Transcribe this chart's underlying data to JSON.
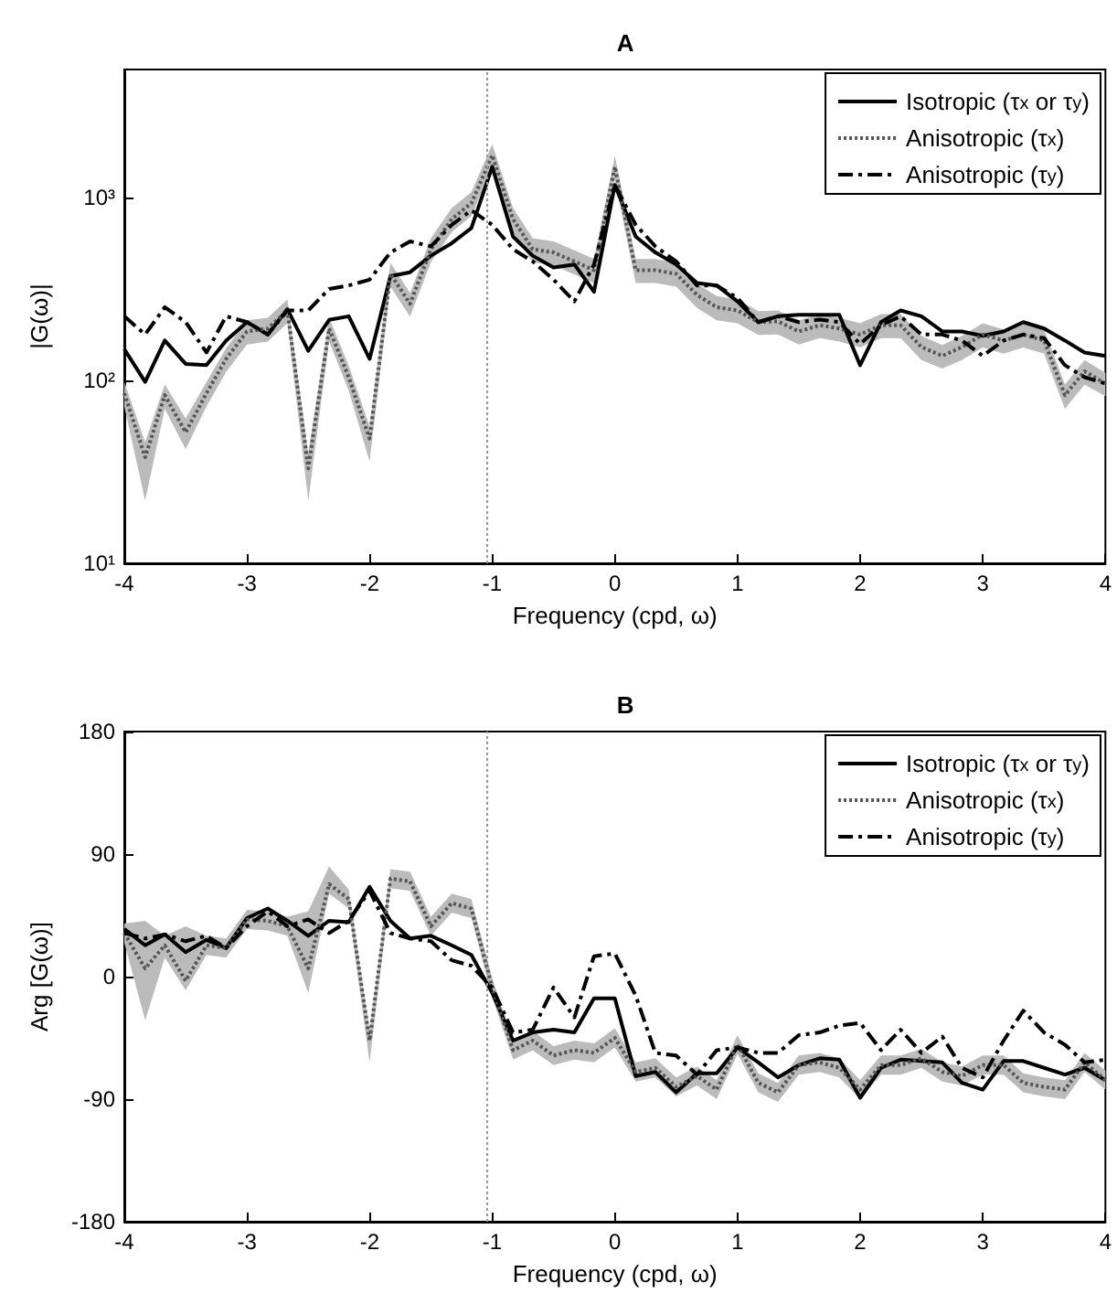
{
  "chart_data": [
    {
      "type": "line",
      "title": "A",
      "xlabel": "Frequency (cpd, ω)",
      "ylabel": "|G(ω)|",
      "log": "y",
      "legend": "top right",
      "marker": "none",
      "x": [
        -4,
        -3.83,
        -3.67,
        -3.5,
        -3.33,
        -3.17,
        -3,
        -2.83,
        -2.67,
        -2.5,
        -2.33,
        -2.17,
        -2,
        -1.83,
        -1.67,
        -1.5,
        -1.33,
        -1.17,
        -1,
        -0.83,
        -0.67,
        -0.5,
        -0.33,
        -0.17,
        0,
        0.17,
        0.33,
        0.5,
        0.67,
        0.83,
        1,
        1.17,
        1.33,
        1.5,
        1.67,
        1.83,
        2,
        2.17,
        2.33,
        2.5,
        2.67,
        2.83,
        3,
        3.17,
        3.33,
        3.5,
        3.67,
        3.83,
        4
      ],
      "xlim": [
        -4,
        4
      ],
      "xticks": [
        -4,
        -3,
        -2,
        -1,
        0,
        1,
        2,
        3,
        4
      ],
      "ylim": [
        10,
        5000
      ],
      "yticks": [
        {
          "value": 10,
          "label": "10¹"
        },
        {
          "value": 100,
          "label": "10²"
        },
        {
          "value": 1000,
          "label": "10³"
        }
      ],
      "ref_lines": [
        {
          "axis": "x",
          "value": -1.05,
          "color": "#999999",
          "line_style": "dotted"
        }
      ],
      "series": [
        {
          "name": "Isotropic (τ$_{x}$ or τ$_{y}$)",
          "color": "#000000",
          "line_style": "solid",
          "values": [
            148,
            98,
            165,
            123,
            121,
            165,
            208,
            178,
            245,
            145,
            214,
            224,
            131,
            371,
            390,
            480,
            562,
            680,
            1470,
            610,
            480,
            414,
            430,
            305,
            1170,
            610,
            500,
            430,
            340,
            330,
            270,
            208,
            224,
            228,
            228,
            228,
            121,
            208,
            241,
            224,
            185,
            185,
            175,
            185,
            208,
            192,
            165,
            142,
            136
          ]
        },
        {
          "name": "Anisotropic (τ$_{x}$)",
          "color": "#555555",
          "line_style": "dotted",
          "values": [
            85,
            38,
            83,
            52,
            85,
            131,
            185,
            192,
            241,
            33,
            192,
            104,
            48,
            382,
            262,
            520,
            760,
            930,
            1700,
            760,
            520,
            500,
            447,
            400,
            1470,
            400,
            400,
            382,
            293,
            251,
            241,
            208,
            210,
            185,
            200,
            192,
            178,
            200,
            200,
            152,
            136,
            152,
            178,
            165,
            178,
            165,
            83,
            112,
            96
          ],
          "lower": [
            72,
            22,
            70,
            42,
            72,
            111,
            157,
            163,
            205,
            22,
            163,
            88,
            36,
            325,
            223,
            442,
            646,
            790,
            1450,
            646,
            442,
            425,
            380,
            340,
            1250,
            340,
            340,
            325,
            249,
            213,
            205,
            177,
            178,
            157,
            170,
            163,
            151,
            170,
            170,
            129,
            116,
            129,
            151,
            140,
            151,
            140,
            70,
            95,
            82
          ],
          "upper": [
            98,
            46,
            95,
            62,
            98,
            150,
            213,
            220,
            277,
            40,
            220,
            120,
            56,
            440,
            300,
            598,
            874,
            1070,
            1950,
            874,
            598,
            575,
            514,
            460,
            1690,
            460,
            460,
            440,
            337,
            289,
            277,
            239,
            241,
            213,
            230,
            220,
            205,
            230,
            230,
            175,
            156,
            175,
            205,
            190,
            205,
            190,
            95,
            129,
            110
          ]
        },
        {
          "name": "Anisotropic (τ$_{y}$)",
          "color": "#000000",
          "line_style": "dashed",
          "values": [
            224,
            178,
            251,
            208,
            142,
            224,
            208,
            178,
            241,
            241,
            316,
            330,
            355,
            500,
            575,
            540,
            708,
            850,
            708,
            520,
            447,
            355,
            270,
            430,
            1170,
            708,
            540,
            447,
            330,
            330,
            282,
            208,
            224,
            208,
            215,
            208,
            158,
            200,
            224,
            178,
            178,
            165,
            136,
            165,
            178,
            170,
            121,
            104,
            96
          ]
        }
      ]
    },
    {
      "type": "line",
      "title": "B",
      "xlabel": "Frequency (cpd, ω)",
      "ylabel": "Arg [G(ω)]",
      "legend": "top right",
      "marker": "none",
      "x": [
        -4,
        -3.83,
        -3.67,
        -3.5,
        -3.33,
        -3.17,
        -3,
        -2.83,
        -2.67,
        -2.5,
        -2.33,
        -2.17,
        -2,
        -1.83,
        -1.67,
        -1.5,
        -1.33,
        -1.17,
        -1,
        -0.83,
        -0.67,
        -0.5,
        -0.33,
        -0.17,
        0,
        0.17,
        0.33,
        0.5,
        0.67,
        0.83,
        1,
        1.17,
        1.33,
        1.5,
        1.67,
        1.83,
        2,
        2.17,
        2.33,
        2.5,
        2.67,
        2.83,
        3,
        3.17,
        3.33,
        3.5,
        3.67,
        3.83,
        4
      ],
      "xlim": [
        -4,
        4
      ],
      "xticks": [
        -4,
        -3,
        -2,
        -1,
        0,
        1,
        2,
        3,
        4
      ],
      "ylim": [
        -180,
        180
      ],
      "yticks": [
        -180,
        -90,
        0,
        90,
        180
      ],
      "ref_lines": [
        {
          "axis": "x",
          "value": -1.05,
          "color": "#999999",
          "line_style": "dotted"
        }
      ],
      "series": [
        {
          "name": "Isotropic (τ$_{x}$ or τ$_{y}$)",
          "color": "#000000",
          "line_style": "solid",
          "values": [
            35,
            23,
            31,
            18,
            27,
            21,
            43,
            50,
            41,
            30,
            41,
            40,
            66,
            41,
            28,
            30,
            23,
            16,
            -12,
            -47,
            -41,
            -39,
            -41,
            -16,
            -16,
            -73,
            -70,
            -85,
            -71,
            -71,
            -52,
            -63,
            -74,
            -65,
            -60,
            -61,
            -89,
            -67,
            -61,
            -62,
            -63,
            -78,
            -83,
            -62,
            -62,
            -67,
            -72,
            -67,
            -76
          ]
        },
        {
          "name": "Anisotropic (τ$_{x}$)",
          "color": "#555555",
          "line_style": "dotted",
          "values": [
            32,
            6,
            23,
            -3,
            23,
            21,
            42,
            41,
            37,
            6,
            68,
            57,
            -47,
            72,
            70,
            37,
            54,
            50,
            -8,
            -54,
            -47,
            -58,
            -54,
            -56,
            -45,
            -70,
            -67,
            -81,
            -73,
            -83,
            -50,
            -78,
            -85,
            -65,
            -63,
            -67,
            -83,
            -65,
            -65,
            -60,
            -70,
            -73,
            -65,
            -65,
            -78,
            -81,
            -83,
            -63,
            -76
          ],
          "lower": [
            25,
            -32,
            14,
            -10,
            16,
            14,
            35,
            34,
            30,
            -12,
            61,
            50,
            -63,
            65,
            63,
            30,
            47,
            43,
            -15,
            -61,
            -54,
            -65,
            -61,
            -63,
            -52,
            -77,
            -74,
            -88,
            -80,
            -90,
            -57,
            -85,
            -92,
            -72,
            -70,
            -74,
            -90,
            -72,
            -72,
            -67,
            -77,
            -80,
            -72,
            -72,
            -85,
            -88,
            -90,
            -70,
            -83
          ],
          "upper": [
            39,
            41,
            30,
            37,
            30,
            28,
            49,
            48,
            44,
            48,
            81,
            64,
            -40,
            79,
            77,
            44,
            61,
            57,
            -1,
            -47,
            -40,
            -51,
            -47,
            -49,
            -38,
            -63,
            -60,
            -74,
            -66,
            -76,
            -43,
            -71,
            -78,
            -58,
            -56,
            -60,
            -76,
            -58,
            -58,
            -53,
            -63,
            -66,
            -58,
            -58,
            -71,
            -74,
            -76,
            -56,
            -69
          ]
        },
        {
          "name": "Anisotropic (τ$_{y}$)",
          "color": "#000000",
          "line_style": "dashed",
          "values": [
            32,
            28,
            31,
            26,
            30,
            21,
            37,
            48,
            37,
            42,
            32,
            41,
            63,
            32,
            28,
            26,
            12,
            8,
            -8,
            -41,
            -39,
            -8,
            -30,
            15,
            17,
            -14,
            -56,
            -58,
            -72,
            -54,
            -52,
            -56,
            -56,
            -43,
            -41,
            -36,
            -34,
            -54,
            -39,
            -56,
            -44,
            -67,
            -74,
            -47,
            -25,
            -41,
            -50,
            -63,
            -61
          ]
        }
      ]
    }
  ]
}
